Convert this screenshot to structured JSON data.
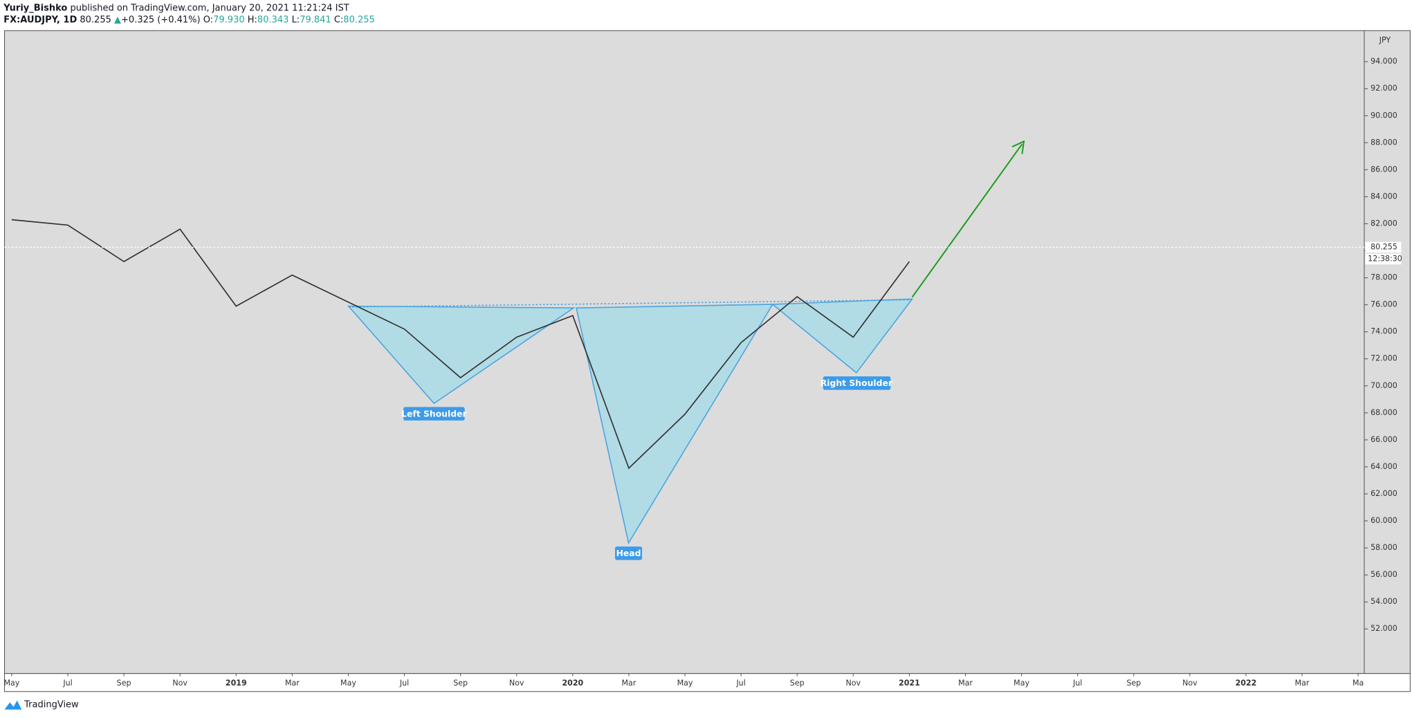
{
  "header": {
    "author": "Yuriy_Bishko",
    "published": "published on TradingView.com, January 20, 2021 11:21:24 IST",
    "symbol": "FX:AUDJPY, 1D",
    "price": "80.255",
    "arrow": "▲",
    "change": "+0.325 (+0.41%)",
    "open_label": "O:",
    "open": "79.930",
    "high_label": "H:",
    "high": "80.343",
    "low_label": "L:",
    "low": "79.841",
    "close_label": "C:",
    "close": "80.255"
  },
  "chart_data": {
    "type": "line",
    "y_axis_label": "JPY",
    "color": "#333333",
    "grid": false,
    "categories": [
      "May",
      "Jul",
      "Sep",
      "Nov",
      "2019",
      "Mar",
      "May",
      "Jul",
      "Sep",
      "Nov",
      "2020",
      "Mar",
      "May",
      "Jul",
      "Sep",
      "Nov",
      "2021",
      "Mar",
      "May",
      "Jul",
      "Sep",
      "Nov",
      "2022",
      "Mar",
      "Ma"
    ],
    "values": [
      82.3,
      81.9,
      79.2,
      81.6,
      75.9,
      78.2,
      76.2,
      74.2,
      70.6,
      73.6,
      75.2,
      63.9,
      67.9,
      73.2,
      76.6,
      73.6,
      79.2,
      null,
      null,
      null,
      null,
      null,
      null,
      null,
      null
    ],
    "ylim": [
      48.7,
      96.3
    ],
    "yticks": [
      {
        "value": 52,
        "label": "52.000"
      },
      {
        "value": 54,
        "label": "54.000"
      },
      {
        "value": 56,
        "label": "56.000"
      },
      {
        "value": 58,
        "label": "58.000"
      },
      {
        "value": 60,
        "label": "60.000"
      },
      {
        "value": 62,
        "label": "62.000"
      },
      {
        "value": 64,
        "label": "64.000"
      },
      {
        "value": 66,
        "label": "66.000"
      },
      {
        "value": 68,
        "label": "68.000"
      },
      {
        "value": 70,
        "label": "70.000"
      },
      {
        "value": 72,
        "label": "72.000"
      },
      {
        "value": 74,
        "label": "74.000"
      },
      {
        "value": 76,
        "label": "76.000"
      },
      {
        "value": 78,
        "label": "78.000"
      },
      {
        "value": 80,
        "label": "80.000"
      },
      {
        "value": 82,
        "label": "82.000"
      },
      {
        "value": 84,
        "label": "84.000"
      },
      {
        "value": 86,
        "label": "86.000"
      },
      {
        "value": 88,
        "label": "88.000"
      },
      {
        "value": 90,
        "label": "90.000"
      },
      {
        "value": 92,
        "label": "92.000"
      },
      {
        "value": 94,
        "label": "94.000"
      }
    ],
    "last_price": 80.255,
    "countdown": "12:38:30",
    "annotations": [
      "Left Shoulder",
      "Head",
      "Right Shoulder"
    ]
  },
  "footer": {
    "brand": "TradingView"
  }
}
